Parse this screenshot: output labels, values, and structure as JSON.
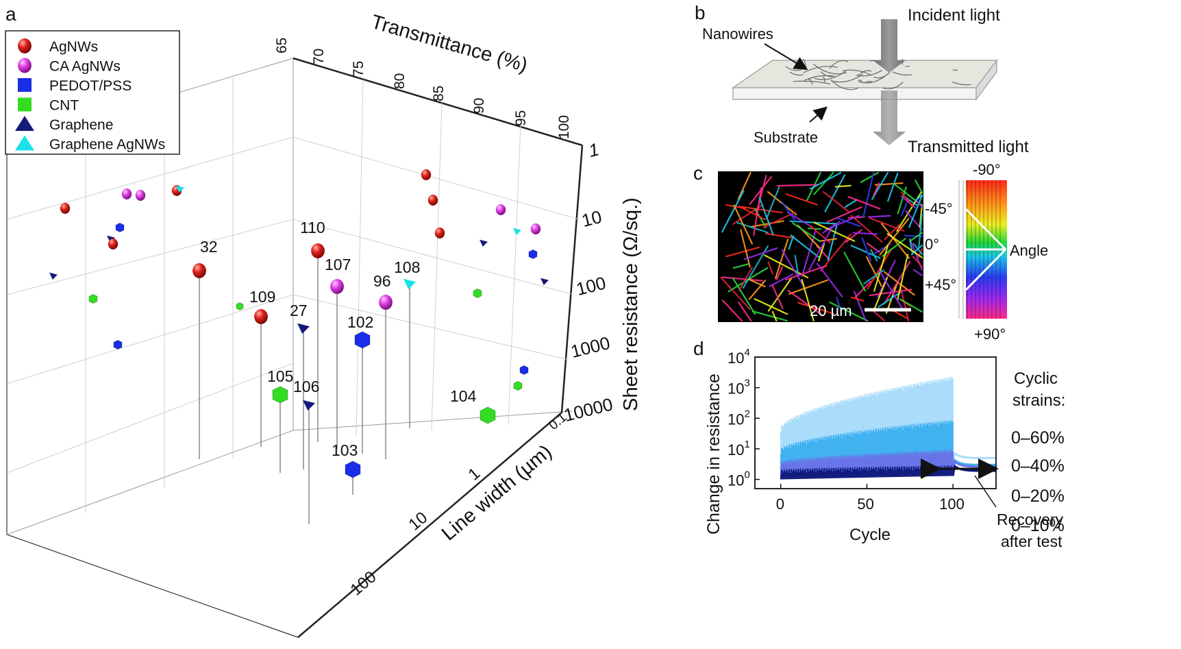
{
  "panels": {
    "a": "a",
    "b": "b",
    "c": "c",
    "d": "d"
  },
  "panel_b": {
    "nanowires": "Nanowires",
    "incident": "Incident light",
    "substrate": "Substrate",
    "transmitted": "Transmitted light"
  },
  "panel_c": {
    "scale": "20 µm",
    "ticks": [
      "-45°",
      "0°",
      "+45°"
    ],
    "angle_label": "Angle",
    "wheel_top": "-90°",
    "wheel_bottom": "+90°"
  },
  "panel_d": {
    "strain_title_1": "Cyclic",
    "strain_title_2": "strains:",
    "recovery_1": "Recovery",
    "recovery_2": "after test"
  },
  "chart_data": [
    {
      "type": "scatter",
      "panel": "a",
      "xlabel": "Transmittance (%)",
      "ylabel": "Sheet resistance (Ω/sq.)",
      "zlabel": "Line width (µm)",
      "x_ticks": [
        "65",
        "70",
        "75",
        "80",
        "85",
        "90",
        "95",
        "100"
      ],
      "y_ticks": [
        "1",
        "10",
        "100",
        "1000",
        "10000"
      ],
      "z_ticks": [
        "0.1",
        "1",
        "10",
        "100"
      ],
      "xlim": [
        65,
        100
      ],
      "ylim": [
        1,
        10000
      ],
      "y_scale": "log",
      "z_scale": "log",
      "legend_position": "top-left",
      "legend": [
        {
          "name": "AgNWs",
          "color": "#e0201b",
          "marker": "sphere"
        },
        {
          "name": "CA AgNWs",
          "color": "#e040e8",
          "marker": "sphere"
        },
        {
          "name": "PEDOT/PSS",
          "color": "#1a2ee8",
          "marker": "square"
        },
        {
          "name": "CNT",
          "color": "#33dd22",
          "marker": "square"
        },
        {
          "name": "Graphene",
          "color": "#151a7a",
          "marker": "triangle"
        },
        {
          "name": "Graphene AgNWs",
          "color": "#18e2e8",
          "marker": "triangle"
        }
      ],
      "labeled_points": [
        {
          "ref": "32",
          "series": "AgNWs"
        },
        {
          "ref": "110",
          "series": "AgNWs"
        },
        {
          "ref": "107",
          "series": "CA AgNWs"
        },
        {
          "ref": "108",
          "series": "Graphene AgNWs"
        },
        {
          "ref": "96",
          "series": "CA AgNWs"
        },
        {
          "ref": "109",
          "series": "AgNWs"
        },
        {
          "ref": "27",
          "series": "Graphene"
        },
        {
          "ref": "102",
          "series": "PEDOT/PSS"
        },
        {
          "ref": "105",
          "series": "CNT"
        },
        {
          "ref": "106",
          "series": "Graphene"
        },
        {
          "ref": "104",
          "series": "CNT"
        },
        {
          "ref": "103",
          "series": "PEDOT/PSS"
        }
      ]
    },
    {
      "type": "area",
      "panel": "d",
      "xlabel": "Cycle",
      "ylabel": "Change in resistance",
      "x_ticks": [
        "0",
        "50",
        "100"
      ],
      "y_ticks": [
        "10^0",
        "10^1",
        "10^2",
        "10^3",
        "10^4"
      ],
      "xlim": [
        -15,
        125
      ],
      "ylim": [
        0.5,
        10000
      ],
      "y_scale": "log",
      "series": [
        {
          "name": "0–60%",
          "color": "#a8dcfa",
          "min": [
            1.5,
            3.5
          ],
          "max_start": 50,
          "max_end": 2400,
          "after": 5
        },
        {
          "name": "0–40%",
          "color": "#3fb1ef",
          "min": [
            1.3,
            2.5
          ],
          "max_start": 10,
          "max_end": 90,
          "after": 3
        },
        {
          "name": "0–20%",
          "color": "#6a72e8",
          "min": [
            1.2,
            1.6
          ],
          "max_start": 3.8,
          "max_end": 9.5,
          "after": 2.6
        },
        {
          "name": "0–10%",
          "color": "#101a7d",
          "min": [
            1.0,
            1.3
          ],
          "max_start": 2.1,
          "max_end": 2.9,
          "after": 1.9
        }
      ]
    }
  ]
}
